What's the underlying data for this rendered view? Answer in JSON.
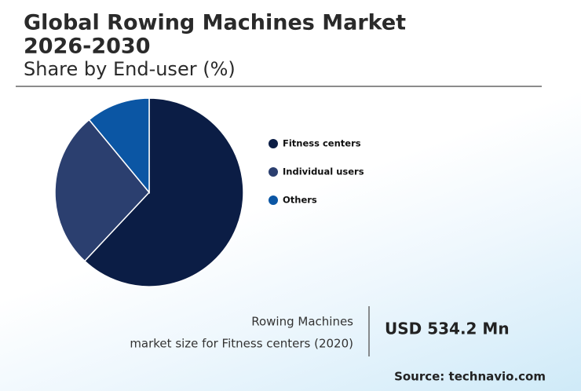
{
  "chart_data": {
    "type": "pie",
    "title": [
      "Global Rowing Machines Market",
      "2026-2030"
    ],
    "subtitle": "Share by End-user (%)",
    "categories": [
      "Fitness centers",
      "Individual users",
      "Others"
    ],
    "values": [
      62,
      27,
      11
    ],
    "colors": [
      "#0b1d45",
      "#2b3f6f",
      "#0b56a4"
    ],
    "annotation": {
      "label": [
        "Rowing Machines",
        "market size for Fitness centers (2020)"
      ],
      "value": "USD 534.2 Mn"
    },
    "source": "Source: technavio.com"
  }
}
